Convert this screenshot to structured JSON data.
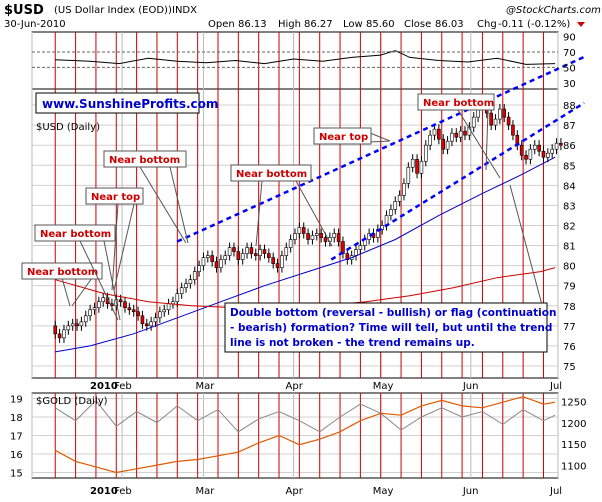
{
  "header": {
    "symbol": "$USD",
    "name": "(US Dollar Index (EOD))",
    "exchange": "INDX",
    "copyright": "@StockCharts.com",
    "date": "30-Jun-2010",
    "open_label": "Open",
    "open": "86.13",
    "high_label": "High",
    "high": "86.27",
    "low_label": "Low",
    "low": "85.60",
    "close_label": "Close",
    "close": "86.03",
    "chg_label": "Chg",
    "chg": "-0.11 (-0.12%)"
  },
  "watermark": "www.SunshineProfits.com",
  "colors": {
    "price": "#000000",
    "ma50": "#0000cc",
    "ma200": "#cc0000",
    "gold": "#e05a00",
    "compare": "#888888",
    "vline": "#cc0000",
    "trend": "#0000ff",
    "callout_text": "#cc0000",
    "note_text": "#0000cc",
    "grid": "#d0d0d0"
  },
  "months": [
    "2010",
    "Feb",
    "Mar",
    "Apr",
    "May",
    "Jun",
    "Jul"
  ],
  "chart_data": [
    {
      "type": "line",
      "title": "$USD (Daily)",
      "y_ticks": [
        75,
        76,
        77,
        78,
        79,
        80,
        81,
        82,
        83,
        84,
        85,
        86,
        87,
        88
      ],
      "ylim": [
        74.4,
        88.8
      ],
      "x_start_day": 8,
      "series": [
        {
          "kind": "ohlc",
          "values": [
            [
              77.0,
              76.6
            ],
            [
              76.6,
              76.4
            ],
            [
              76.4,
              76.8
            ],
            [
              76.8,
              77.0
            ],
            [
              77.0,
              77.1
            ],
            [
              77.1,
              77.0
            ],
            [
              77.0,
              77.2
            ],
            [
              77.2,
              77.5
            ],
            [
              77.5,
              77.8
            ],
            [
              77.8,
              77.9
            ],
            [
              77.9,
              78.2
            ],
            [
              78.2,
              78.4
            ],
            [
              78.4,
              78.1
            ],
            [
              78.1,
              78.0
            ],
            [
              78.0,
              78.3
            ],
            [
              78.3,
              78.2
            ],
            [
              78.2,
              77.9
            ],
            [
              77.9,
              77.8
            ],
            [
              77.8,
              77.7
            ],
            [
              77.7,
              77.5
            ],
            [
              77.5,
              77.1
            ],
            [
              77.1,
              77.0
            ],
            [
              77.0,
              77.2
            ],
            [
              77.2,
              77.4
            ],
            [
              77.4,
              77.7
            ],
            [
              77.7,
              77.8
            ],
            [
              77.8,
              78.1
            ],
            [
              78.1,
              78.2
            ],
            [
              78.2,
              78.6
            ],
            [
              78.6,
              78.9
            ],
            [
              78.9,
              79.1
            ],
            [
              79.1,
              79.3
            ],
            [
              79.3,
              79.7
            ],
            [
              79.7,
              80.0
            ],
            [
              80.0,
              80.4
            ],
            [
              80.4,
              80.5
            ],
            [
              80.5,
              80.2
            ],
            [
              80.2,
              79.9
            ],
            [
              79.9,
              80.3
            ],
            [
              80.3,
              80.5
            ],
            [
              80.5,
              80.9
            ],
            [
              80.9,
              80.7
            ],
            [
              80.7,
              80.3
            ],
            [
              80.3,
              80.6
            ],
            [
              80.6,
              80.9
            ],
            [
              80.9,
              80.6
            ],
            [
              80.6,
              80.5
            ],
            [
              80.5,
              80.8
            ],
            [
              80.8,
              80.6
            ],
            [
              80.6,
              80.4
            ],
            [
              80.4,
              80.1
            ],
            [
              80.1,
              79.9
            ],
            [
              79.9,
              80.5
            ],
            [
              80.5,
              80.9
            ],
            [
              80.9,
              81.3
            ],
            [
              81.3,
              81.6
            ],
            [
              81.6,
              81.9
            ],
            [
              81.9,
              81.6
            ],
            [
              81.6,
              81.3
            ],
            [
              81.3,
              81.5
            ],
            [
              81.5,
              81.6
            ],
            [
              81.6,
              81.4
            ],
            [
              81.4,
              81.2
            ],
            [
              81.2,
              81.4
            ],
            [
              81.4,
              81.6
            ],
            [
              81.6,
              81.2
            ],
            [
              81.2,
              80.6
            ],
            [
              80.6,
              80.3
            ],
            [
              80.3,
              80.5
            ],
            [
              80.5,
              80.8
            ],
            [
              80.8,
              81.0
            ],
            [
              81.0,
              81.3
            ],
            [
              81.3,
              81.6
            ],
            [
              81.6,
              81.4
            ],
            [
              81.4,
              81.8
            ],
            [
              81.8,
              82.0
            ],
            [
              82.0,
              82.5
            ],
            [
              82.5,
              82.8
            ],
            [
              82.8,
              83.2
            ],
            [
              83.2,
              83.5
            ],
            [
              83.5,
              84.1
            ],
            [
              84.1,
              84.9
            ],
            [
              84.9,
              85.3
            ],
            [
              85.3,
              84.6
            ],
            [
              84.6,
              85.2
            ],
            [
              85.2,
              86.0
            ],
            [
              86.0,
              86.5
            ],
            [
              86.5,
              86.8
            ],
            [
              86.8,
              86.3
            ],
            [
              86.3,
              85.8
            ],
            [
              85.8,
              86.2
            ],
            [
              86.2,
              86.6
            ],
            [
              86.6,
              86.4
            ],
            [
              86.4,
              86.7
            ],
            [
              86.7,
              86.5
            ],
            [
              86.5,
              86.9
            ],
            [
              86.9,
              87.4
            ],
            [
              87.4,
              88.0
            ],
            [
              88.0,
              88.2
            ],
            [
              88.2,
              87.6
            ],
            [
              87.6,
              87.0
            ],
            [
              87.0,
              87.3
            ],
            [
              87.3,
              87.8
            ],
            [
              87.8,
              87.4
            ],
            [
              87.4,
              87.0
            ],
            [
              87.0,
              86.5
            ],
            [
              86.5,
              86.0
            ],
            [
              86.0,
              85.5
            ],
            [
              85.5,
              85.3
            ],
            [
              85.3,
              85.8
            ],
            [
              85.8,
              86.0
            ],
            [
              86.0,
              85.7
            ],
            [
              85.7,
              85.4
            ],
            [
              85.4,
              85.6
            ],
            [
              85.6,
              85.8
            ],
            [
              85.8,
              86.1
            ],
            [
              86.1,
              86.0
            ]
          ]
        },
        {
          "name": "",
          "kind": "ma50",
          "values": [
            [
              8,
              75.7
            ],
            [
              20,
              76.0
            ],
            [
              35,
              76.6
            ],
            [
              50,
              77.4
            ],
            [
              65,
              78.2
            ],
            [
              80,
              79.0
            ],
            [
              95,
              79.7
            ],
            [
              110,
              80.4
            ],
            [
              125,
              81.3
            ],
            [
              140,
              82.5
            ],
            [
              155,
              83.6
            ],
            [
              168,
              84.5
            ],
            [
              180,
              85.4
            ]
          ]
        },
        {
          "name": "",
          "kind": "ma200",
          "values": [
            [
              8,
              79.3
            ],
            [
              25,
              78.6
            ],
            [
              40,
              78.2
            ],
            [
              55,
              78.0
            ],
            [
              70,
              77.9
            ],
            [
              85,
              77.9
            ],
            [
              100,
              78.0
            ],
            [
              115,
              78.2
            ],
            [
              130,
              78.5
            ],
            [
              145,
              78.9
            ],
            [
              160,
              79.4
            ],
            [
              175,
              79.7
            ],
            [
              180,
              79.9
            ]
          ]
        },
        {
          "name": "",
          "kind": "trend-upper",
          "values": [
            [
              50,
              81.2
            ],
            [
              190,
              90.4
            ]
          ]
        },
        {
          "name": "",
          "kind": "trend-lower",
          "values": [
            [
              103,
              80.3
            ],
            [
              190,
              88.1
            ]
          ]
        }
      ],
      "vlines_day": [
        8,
        15,
        22,
        29,
        36,
        43,
        50,
        57,
        64,
        71,
        78,
        85,
        92,
        99,
        106,
        113,
        120,
        127,
        134,
        141,
        148,
        155,
        162,
        169,
        176
      ],
      "annotations": [
        {
          "label": "Near bottom",
          "pos": "lower-left"
        },
        {
          "label": "Near bottom",
          "pos": "left"
        },
        {
          "label": "Near top",
          "pos": "left"
        },
        {
          "label": "Near bottom",
          "pos": "left-middle"
        },
        {
          "label": "Near bottom",
          "pos": "middle"
        },
        {
          "label": "Near top",
          "pos": "middle-right"
        },
        {
          "label": "Near bottom",
          "pos": "upper-right"
        }
      ],
      "note": [
        "Double bottom (reversal - bullish) or flag (continuation",
        "- bearish) formation? Time will tell, but until the trend",
        "line is not broken - the trend remains up."
      ]
    },
    {
      "type": "line",
      "title": "",
      "y_ticks": [
        30,
        50,
        70,
        90
      ],
      "ylim": [
        22,
        96
      ],
      "series": [
        {
          "name": "",
          "kind": "rsi",
          "values": [
            [
              8,
              60
            ],
            [
              20,
              58
            ],
            [
              30,
              55
            ],
            [
              40,
              62
            ],
            [
              50,
              58
            ],
            [
              60,
              56
            ],
            [
              70,
              59
            ],
            [
              80,
              55
            ],
            [
              90,
              61
            ],
            [
              100,
              58
            ],
            [
              110,
              63
            ],
            [
              120,
              66
            ],
            [
              125,
              72
            ],
            [
              130,
              63
            ],
            [
              140,
              59
            ],
            [
              150,
              57
            ],
            [
              160,
              62
            ],
            [
              170,
              54
            ],
            [
              180,
              55
            ]
          ]
        }
      ],
      "reference_lines": [
        50,
        70
      ]
    },
    {
      "type": "line",
      "title": "$GOLD (Daily)",
      "y_ticks": [
        15,
        16,
        17,
        18,
        19
      ],
      "ylim": [
        14.7,
        19.3
      ],
      "y2_ticks": [
        1100,
        1150,
        1200,
        1250
      ],
      "y2lim": [
        1070,
        1270
      ],
      "series": [
        {
          "name": "",
          "kind": "gold",
          "values": [
            [
              8,
              16.2
            ],
            [
              15,
              15.6
            ],
            [
              22,
              15.3
            ],
            [
              29,
              15.0
            ],
            [
              36,
              15.2
            ],
            [
              43,
              15.4
            ],
            [
              50,
              15.6
            ],
            [
              57,
              15.7
            ],
            [
              64,
              15.9
            ],
            [
              71,
              16.1
            ],
            [
              78,
              16.6
            ],
            [
              85,
              17.0
            ],
            [
              92,
              16.5
            ],
            [
              99,
              16.8
            ],
            [
              106,
              17.2
            ],
            [
              113,
              17.8
            ],
            [
              120,
              18.2
            ],
            [
              127,
              18.1
            ],
            [
              134,
              18.6
            ],
            [
              141,
              18.9
            ],
            [
              148,
              18.6
            ],
            [
              155,
              18.5
            ],
            [
              162,
              18.8
            ],
            [
              169,
              19.1
            ],
            [
              176,
              18.7
            ],
            [
              180,
              18.8
            ]
          ]
        },
        {
          "name": "",
          "kind": "compare",
          "values": [
            [
              8,
              18.5
            ],
            [
              15,
              17.8
            ],
            [
              22,
              18.9
            ],
            [
              29,
              17.5
            ],
            [
              36,
              18.3
            ],
            [
              43,
              17.7
            ],
            [
              50,
              18.6
            ],
            [
              57,
              17.8
            ],
            [
              64,
              18.4
            ],
            [
              71,
              17.2
            ],
            [
              78,
              17.9
            ],
            [
              85,
              18.3
            ],
            [
              92,
              17.8
            ],
            [
              99,
              17.2
            ],
            [
              106,
              18.0
            ],
            [
              113,
              18.7
            ],
            [
              120,
              18.2
            ],
            [
              127,
              17.3
            ],
            [
              134,
              18.0
            ],
            [
              141,
              18.5
            ],
            [
              148,
              18.0
            ],
            [
              155,
              18.3
            ],
            [
              162,
              17.6
            ],
            [
              169,
              18.4
            ],
            [
              176,
              17.8
            ],
            [
              180,
              18.1
            ]
          ]
        }
      ]
    }
  ]
}
